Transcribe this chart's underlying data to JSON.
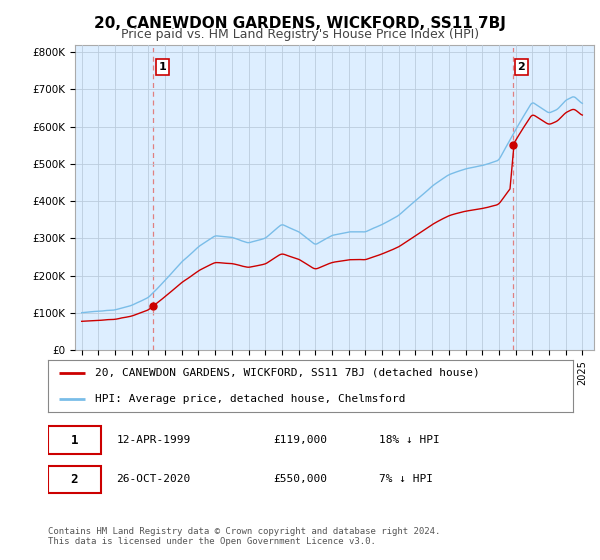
{
  "title": "20, CANEWDON GARDENS, WICKFORD, SS11 7BJ",
  "subtitle": "Price paid vs. HM Land Registry's House Price Index (HPI)",
  "ylabel_values": [
    "£0",
    "£100K",
    "£200K",
    "£300K",
    "£400K",
    "£500K",
    "£600K",
    "£700K",
    "£800K"
  ],
  "yticks": [
    0,
    100000,
    200000,
    300000,
    400000,
    500000,
    600000,
    700000,
    800000
  ],
  "ylim": [
    0,
    820000
  ],
  "sale1_year": 1999.3,
  "sale1_price": 119000,
  "sale2_year": 2020.82,
  "sale2_price": 550000,
  "legend_label_red": "20, CANEWDON GARDENS, WICKFORD, SS11 7BJ (detached house)",
  "legend_label_blue": "HPI: Average price, detached house, Chelmsford",
  "red_color": "#cc0000",
  "blue_color": "#7abde8",
  "dashed_color": "#e08080",
  "background_color": "#ffffff",
  "plot_bg_color": "#ddeeff",
  "grid_color": "#bbccdd",
  "title_fontsize": 11,
  "subtitle_fontsize": 9,
  "tick_fontsize": 7.5,
  "legend_fontsize": 8,
  "note_fontsize": 8,
  "footer": "Contains HM Land Registry data © Crown copyright and database right 2024.\nThis data is licensed under the Open Government Licence v3.0."
}
